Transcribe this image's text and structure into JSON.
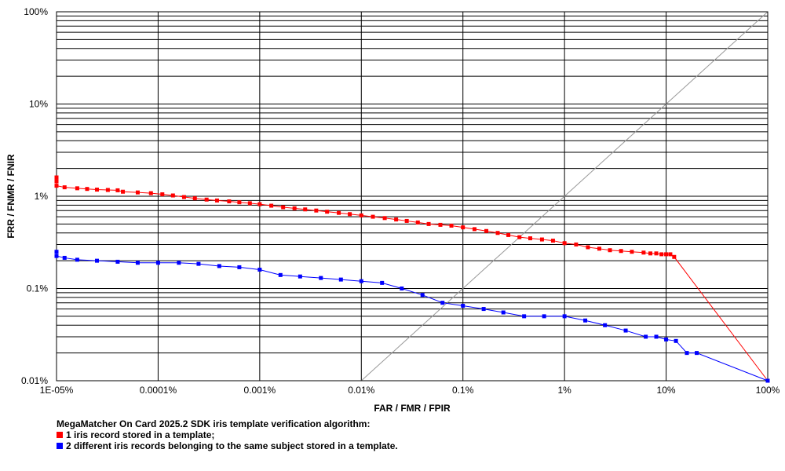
{
  "chart_data": {
    "type": "line",
    "x_scale": "log",
    "y_scale": "log",
    "xlim": [
      1e-05,
      100
    ],
    "ylim": [
      0.01,
      100
    ],
    "xlabel": "FAR / FMR / FPIR",
    "ylabel": "FRR / FNMR / FNIR",
    "x_ticks": [
      {
        "value": 1e-05,
        "label": "1E-05%"
      },
      {
        "value": 0.0001,
        "label": "0.0001%"
      },
      {
        "value": 0.001,
        "label": "0.001%"
      },
      {
        "value": 0.01,
        "label": "0.01%"
      },
      {
        "value": 0.1,
        "label": "0.1%"
      },
      {
        "value": 1,
        "label": "1%"
      },
      {
        "value": 10,
        "label": "10%"
      },
      {
        "value": 100,
        "label": "100%"
      }
    ],
    "y_ticks": [
      {
        "value": 0.01,
        "label": "0.01%"
      },
      {
        "value": 0.1,
        "label": "0.1%"
      },
      {
        "value": 1,
        "label": "1%"
      },
      {
        "value": 10,
        "label": "10%"
      },
      {
        "value": 100,
        "label": "100%"
      }
    ],
    "grid": true,
    "diagonal_reference": {
      "from": [
        0.01,
        0.01
      ],
      "to": [
        100,
        100
      ],
      "color": "#999999"
    },
    "legend_title": "MegaMatcher On Card 2025.2 SDK iris template verification algorithm:",
    "series": [
      {
        "name": "1 iris record stored in a template;",
        "color": "#ff0000",
        "x": [
          1e-05,
          1e-05,
          1e-05,
          1.2e-05,
          1.6e-05,
          2e-05,
          2.5e-05,
          3.2e-05,
          4e-05,
          4.5e-05,
          6.3e-05,
          8.5e-05,
          0.00011,
          0.00014,
          0.00018,
          0.00023,
          0.0003,
          0.00038,
          0.0005,
          0.00063,
          0.0008,
          0.001,
          0.0013,
          0.0017,
          0.0022,
          0.0028,
          0.0036,
          0.0046,
          0.006,
          0.0077,
          0.01,
          0.013,
          0.017,
          0.022,
          0.028,
          0.036,
          0.046,
          0.06,
          0.077,
          0.1,
          0.13,
          0.17,
          0.22,
          0.28,
          0.36,
          0.46,
          0.6,
          0.77,
          1.0,
          1.3,
          1.7,
          2.2,
          2.8,
          3.6,
          4.6,
          6.0,
          7.0,
          8.0,
          9.0,
          10.0,
          11.0,
          12.0,
          100
        ],
        "y": [
          1.6,
          1.45,
          1.3,
          1.25,
          1.22,
          1.2,
          1.18,
          1.17,
          1.16,
          1.12,
          1.1,
          1.08,
          1.05,
          1.02,
          0.98,
          0.95,
          0.92,
          0.9,
          0.88,
          0.86,
          0.84,
          0.82,
          0.79,
          0.76,
          0.74,
          0.72,
          0.7,
          0.68,
          0.66,
          0.64,
          0.62,
          0.6,
          0.58,
          0.56,
          0.54,
          0.52,
          0.5,
          0.49,
          0.48,
          0.46,
          0.44,
          0.42,
          0.4,
          0.38,
          0.36,
          0.35,
          0.34,
          0.33,
          0.31,
          0.3,
          0.28,
          0.27,
          0.26,
          0.255,
          0.25,
          0.245,
          0.24,
          0.24,
          0.235,
          0.235,
          0.235,
          0.22,
          0.01
        ]
      },
      {
        "name": "2 different iris records belonging to the same subject stored in a template.",
        "color": "#0000ff",
        "x": [
          1e-05,
          1e-05,
          1.2e-05,
          1.6e-05,
          2.5e-05,
          4e-05,
          6.3e-05,
          0.0001,
          0.00016,
          0.00025,
          0.0004,
          0.00063,
          0.001,
          0.0016,
          0.0025,
          0.004,
          0.0063,
          0.01,
          0.016,
          0.025,
          0.04,
          0.063,
          0.1,
          0.16,
          0.25,
          0.4,
          0.63,
          1.0,
          1.6,
          2.5,
          4.0,
          6.3,
          8.0,
          10.0,
          12.5,
          16.0,
          20.0,
          100
        ],
        "y": [
          0.25,
          0.225,
          0.215,
          0.205,
          0.2,
          0.195,
          0.19,
          0.19,
          0.19,
          0.185,
          0.175,
          0.17,
          0.16,
          0.14,
          0.135,
          0.13,
          0.125,
          0.12,
          0.115,
          0.1,
          0.085,
          0.07,
          0.065,
          0.06,
          0.055,
          0.05,
          0.05,
          0.05,
          0.045,
          0.04,
          0.035,
          0.03,
          0.03,
          0.028,
          0.027,
          0.02,
          0.02,
          0.01
        ]
      }
    ]
  }
}
